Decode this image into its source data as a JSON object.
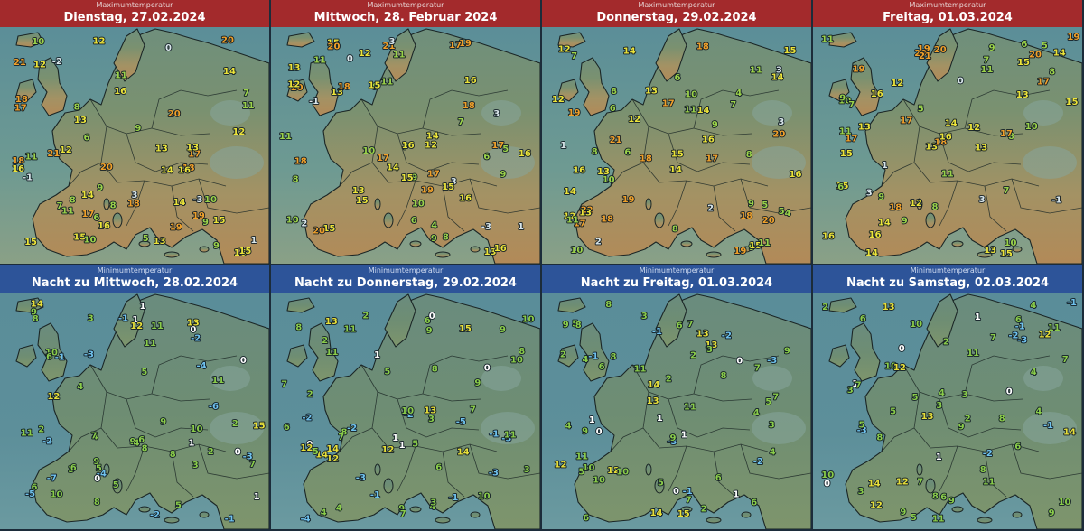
{
  "colors": {
    "max_header": "#a32a2c",
    "min_header": "#2d5499",
    "selected_border": "#c4262e"
  },
  "panels": [
    {
      "kind": "max",
      "subtitle": "Maximumtemperatur",
      "date": "Dienstag, 27.02.2024",
      "labels": [
        "-1",
        "0",
        "1",
        "5",
        "6",
        "7",
        "8",
        "9",
        "9",
        "8",
        "11",
        "12",
        "10",
        "13",
        "14",
        "15",
        "16",
        "18",
        "20",
        "21",
        "17",
        "19",
        "20",
        "16",
        "13",
        "14",
        "15",
        "18",
        "17",
        "16",
        "11",
        "9",
        "11",
        "13",
        "12",
        "10",
        "12",
        "15",
        "14",
        "16",
        "18",
        "19",
        "20",
        "21",
        "18",
        "14",
        "16",
        "17",
        "15",
        "13",
        "12",
        "11",
        "10",
        "8",
        "6",
        "3",
        "-3",
        "-2",
        "7",
        "9"
      ]
    },
    {
      "kind": "max",
      "subtitle": "Maximumtemperatur",
      "date": "Mittwoch, 28. Februar 2024",
      "labels": [
        "-1",
        "0",
        "1",
        "2",
        "3",
        "5",
        "6",
        "7",
        "8",
        "9",
        "11",
        "13",
        "12",
        "10",
        "14",
        "15",
        "16",
        "18",
        "19",
        "20",
        "17",
        "15",
        "16",
        "13",
        "15",
        "18",
        "16",
        "13",
        "11",
        "12",
        "9",
        "10",
        "14",
        "15",
        "17",
        "20",
        "21",
        "20",
        "18",
        "17",
        "16",
        "15",
        "13",
        "12",
        "11",
        "10",
        "9",
        "8",
        "6",
        "3",
        "-3",
        "3",
        "4",
        "7",
        "9",
        "11",
        "16",
        "15",
        "17",
        "19"
      ]
    },
    {
      "kind": "max",
      "subtitle": "Maximumtemperatur",
      "date": "Donnerstag, 29.02.2024",
      "labels": [
        "2",
        "3",
        "4",
        "2",
        "1",
        "5",
        "6",
        "7",
        "8",
        "9",
        "10",
        "12",
        "13",
        "11",
        "14",
        "15",
        "16",
        "17",
        "18",
        "19",
        "20",
        "21",
        "22",
        "19",
        "18",
        "16",
        "15",
        "14",
        "13",
        "12",
        "11",
        "10",
        "9",
        "8",
        "12",
        "14",
        "17",
        "18",
        "20",
        "19",
        "17",
        "16",
        "15",
        "14",
        "13",
        "12",
        "11",
        "10",
        "9",
        "8",
        "7",
        "6",
        "5",
        "4",
        "3",
        "6",
        "8",
        "11",
        "14",
        "18"
      ]
    },
    {
      "kind": "max",
      "subtitle": "Maximumtemperatur",
      "date": "Freitag, 01.03.2024",
      "labels": [
        "1",
        "0",
        "-1",
        "3",
        "5",
        "6",
        "7",
        "8",
        "9",
        "10",
        "12",
        "13",
        "14",
        "15",
        "16",
        "17",
        "18",
        "19",
        "20",
        "17",
        "16",
        "15",
        "14",
        "13",
        "12",
        "11",
        "10",
        "9",
        "8",
        "11",
        "13",
        "15",
        "17",
        "19",
        "20",
        "21",
        "20",
        "18",
        "16",
        "15",
        "14",
        "13",
        "12",
        "11",
        "10",
        "9",
        "8",
        "7",
        "6",
        "5",
        "3",
        "7",
        "9",
        "11",
        "14",
        "16",
        "19",
        "17",
        "15",
        "13"
      ]
    },
    {
      "kind": "min",
      "subtitle": "Minimumtemperatur",
      "date": "Nacht zu Mittwoch, 28.02.2024",
      "labels": [
        "-3",
        "-1",
        "0",
        "1",
        "-2",
        "-4",
        "-5",
        "-6",
        "-7",
        "4",
        "5",
        "6",
        "7",
        "8",
        "9",
        "10",
        "11",
        "12",
        "3",
        "2",
        "1",
        "0",
        "-1",
        "-2",
        "-3",
        "-4",
        "5",
        "6",
        "8",
        "9",
        "10",
        "11",
        "14",
        "15",
        "13",
        "12",
        "11",
        "9",
        "8",
        "6",
        "5",
        "4",
        "3",
        "2",
        "1",
        "0",
        "-1",
        "-2",
        "7",
        "9",
        "11",
        "10",
        "8",
        "6",
        "5",
        "4",
        "3",
        "2",
        "1",
        "0"
      ]
    },
    {
      "kind": "min",
      "subtitle": "Minimumtemperatur",
      "date": "Nacht zu Donnerstag, 29.02.2024",
      "labels": [
        "-1",
        "0",
        "-3",
        "-2",
        "-4",
        "-5",
        "1",
        "2",
        "3",
        "4",
        "5",
        "6",
        "7",
        "8",
        "9",
        "10",
        "11",
        "12",
        "13",
        "14",
        "10",
        "9",
        "8",
        "7",
        "5",
        "4",
        "3",
        "2",
        "1",
        "0",
        "-1",
        "-2",
        "-3",
        "6",
        "8",
        "9",
        "11",
        "12",
        "14",
        "13",
        "11",
        "10",
        "9",
        "8",
        "7",
        "6",
        "5",
        "4",
        "3",
        "2",
        "1",
        "0",
        "-1",
        "-2",
        "-3",
        "7",
        "10",
        "12",
        "14",
        "15"
      ]
    },
    {
      "kind": "min",
      "subtitle": "Minimumtemperatur",
      "date": "Nacht zu Freitag, 01.03.2024",
      "labels": [
        "1",
        "2",
        "3",
        "4",
        "5",
        "6",
        "7",
        "-1",
        "-2",
        "-3",
        "0",
        "1",
        "2",
        "4",
        "5",
        "6",
        "7",
        "8",
        "9",
        "10",
        "11",
        "12",
        "13",
        "14",
        "9",
        "8",
        "7",
        "6",
        "5",
        "4",
        "3",
        "2",
        "1",
        "0",
        "-1",
        "-2",
        "-3",
        "9",
        "11",
        "12",
        "14",
        "13",
        "11",
        "10",
        "9",
        "8",
        "7",
        "6",
        "5",
        "4",
        "3",
        "2",
        "1",
        "0",
        "-1",
        "6",
        "8",
        "10",
        "13",
        "15"
      ]
    },
    {
      "kind": "min",
      "subtitle": "Minimumtemperatur",
      "date": "Nacht zu Samstag, 02.03.2024",
      "labels": [
        "2",
        "3",
        "4",
        "5",
        "6",
        "1",
        "0",
        "-1",
        "-2",
        "-3",
        "3",
        "4",
        "5",
        "6",
        "7",
        "8",
        "9",
        "10",
        "11",
        "12",
        "13",
        "14",
        "10",
        "9",
        "8",
        "7",
        "6",
        "5",
        "4",
        "3",
        "2",
        "1",
        "0",
        "-1",
        "-2",
        "-3",
        "7",
        "9",
        "10",
        "11",
        "12",
        "13",
        "14",
        "12",
        "11",
        "10",
        "9",
        "8",
        "7",
        "6",
        "5",
        "4",
        "3",
        "2",
        "1",
        "0",
        "-1",
        "8",
        "11",
        "12"
      ]
    }
  ]
}
